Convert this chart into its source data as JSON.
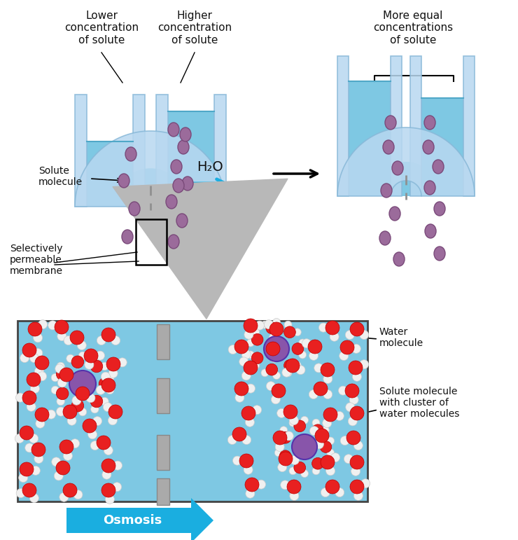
{
  "bg_color": "#ffffff",
  "water_color": "#7EC8E3",
  "tube_color": "#b8d8f0",
  "tube_edge": "#88b8d8",
  "solute_color": "#9B6B9B",
  "solute_edge": "#7a4a7a",
  "membrane_color": "#909090",
  "water_mol_red": "#e82020",
  "water_mol_white": "#f0f0f0",
  "box_bg": "#7EC8E3",
  "arrow_blue": "#1aaee0",
  "arrow_gray": "#b8b8b8",
  "label_color": "#111111",
  "title1": "Lower\nconcentration\nof solute",
  "title2": "Higher\nconcentration\nof solute",
  "title3": "More equal\nconcentrations\nof solute",
  "label_solute": "Solute\nmolecule",
  "label_membrane": "Selectively\npermeable\nmembrane",
  "label_water_mol": "Water\nmolecule",
  "label_solute_cluster": "Solute molecule\nwith cluster of\nwater molecules",
  "label_osmosis": "Osmosis",
  "h2o_label": "H₂O"
}
